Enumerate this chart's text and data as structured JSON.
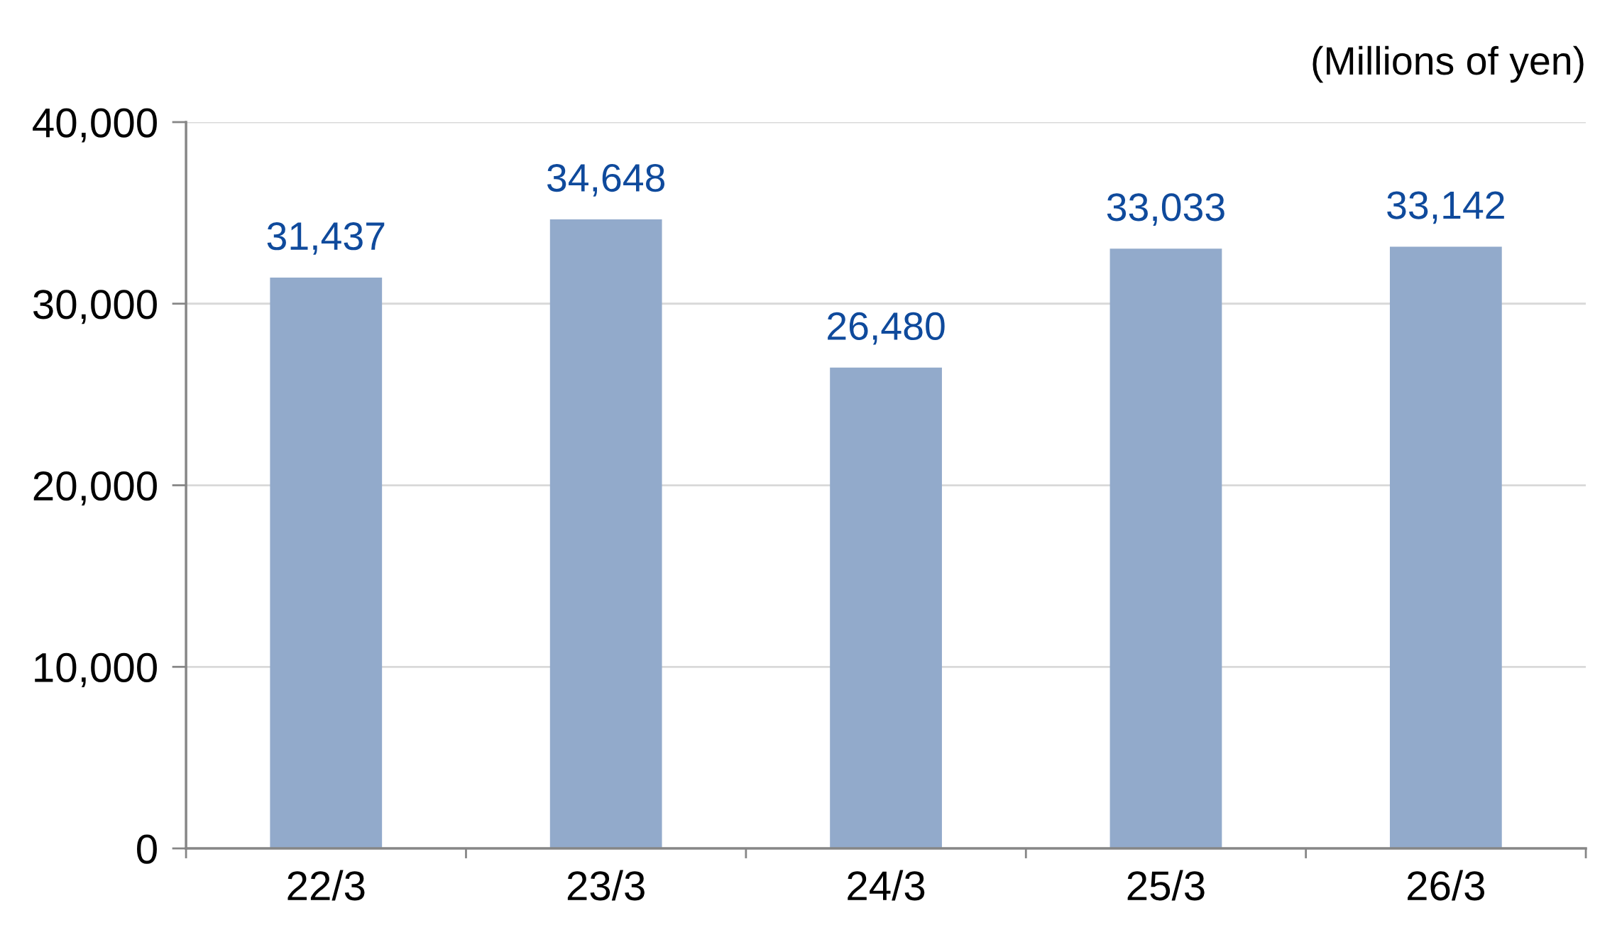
{
  "chart_data": {
    "type": "bar",
    "ylabel": "(Millions of yen)",
    "categories": [
      "22/3",
      "23/3",
      "24/3",
      "25/3",
      "26/3"
    ],
    "values": [
      31437,
      34648,
      26480,
      33033,
      33142
    ],
    "value_labels": [
      "31,437",
      "34,648",
      "26,480",
      "33,033",
      "33,142"
    ],
    "color": "#92aacb",
    "ylim": [
      0,
      40000
    ],
    "yticks": [
      0,
      {
        "value": 10000,
        "label": "10,000"
      },
      {
        "value": 20000,
        "label": "20,000"
      },
      {
        "value": 30000,
        "label": "30,000"
      },
      {
        "value": 40000,
        "label": "40,000"
      }
    ],
    "grid": "y"
  }
}
